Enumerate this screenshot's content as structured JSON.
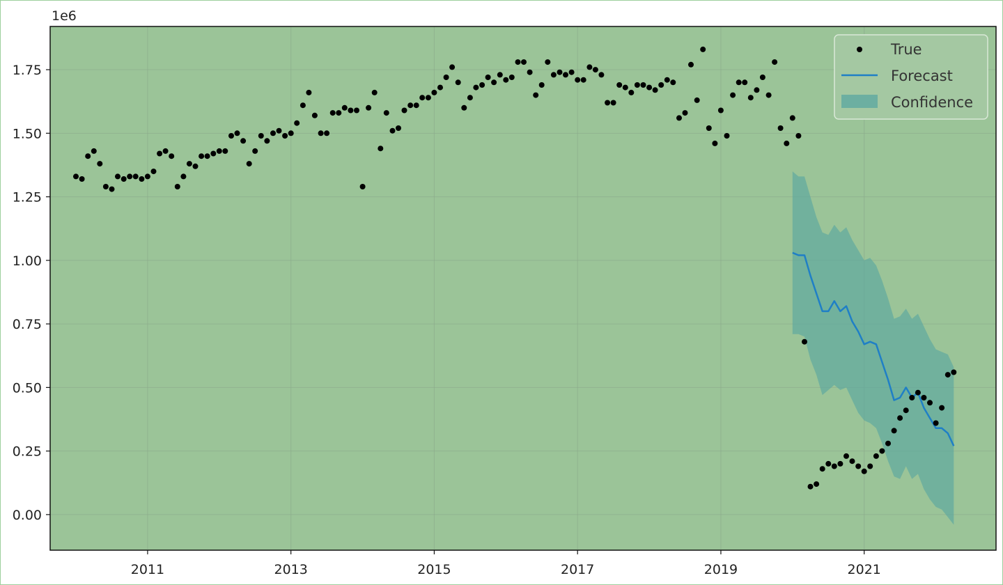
{
  "colors": {
    "plot_bg": "#9bc498",
    "grid": "#8aa98a",
    "true_points": "#000000",
    "forecast_line": "#1f7fc6",
    "confidence_fill": "#5aa7a0",
    "legend_bg": "#a4c8a2",
    "legend_border": "#d9e8d7"
  },
  "chart_data": {
    "type": "line",
    "title": "",
    "xlabel": "",
    "ylabel": "",
    "y_offset_label": "1e6",
    "xlim": [
      2009.64,
      2022.84
    ],
    "ylim": [
      -0.14,
      1.92
    ],
    "grid": true,
    "legend_position": "top-right",
    "x_ticks": [
      2011,
      2013,
      2015,
      2017,
      2019,
      2021
    ],
    "x_tick_labels": [
      "2011",
      "2013",
      "2015",
      "2017",
      "2019",
      "2021"
    ],
    "y_ticks": [
      0.0,
      0.25,
      0.5,
      0.75,
      1.0,
      1.25,
      1.5,
      1.75
    ],
    "y_tick_labels": [
      "0.00",
      "0.25",
      "0.50",
      "0.75",
      "1.00",
      "1.25",
      "1.50",
      "1.75"
    ],
    "legend": [
      "True",
      "Forecast",
      "Confidence"
    ],
    "series": [
      {
        "name": "True",
        "kind": "scatter",
        "points": [
          [
            2010.0,
            1.33
          ],
          [
            2010.083,
            1.32
          ],
          [
            2010.167,
            1.41
          ],
          [
            2010.25,
            1.43
          ],
          [
            2010.333,
            1.38
          ],
          [
            2010.417,
            1.29
          ],
          [
            2010.5,
            1.28
          ],
          [
            2010.583,
            1.33
          ],
          [
            2010.667,
            1.32
          ],
          [
            2010.75,
            1.33
          ],
          [
            2010.833,
            1.33
          ],
          [
            2010.917,
            1.32
          ],
          [
            2011.0,
            1.33
          ],
          [
            2011.083,
            1.35
          ],
          [
            2011.167,
            1.42
          ],
          [
            2011.25,
            1.43
          ],
          [
            2011.333,
            1.41
          ],
          [
            2011.417,
            1.29
          ],
          [
            2011.5,
            1.33
          ],
          [
            2011.583,
            1.38
          ],
          [
            2011.667,
            1.37
          ],
          [
            2011.75,
            1.41
          ],
          [
            2011.833,
            1.41
          ],
          [
            2011.917,
            1.42
          ],
          [
            2012.0,
            1.43
          ],
          [
            2012.083,
            1.43
          ],
          [
            2012.167,
            1.49
          ],
          [
            2012.25,
            1.5
          ],
          [
            2012.333,
            1.47
          ],
          [
            2012.417,
            1.38
          ],
          [
            2012.5,
            1.43
          ],
          [
            2012.583,
            1.49
          ],
          [
            2012.667,
            1.47
          ],
          [
            2012.75,
            1.5
          ],
          [
            2012.833,
            1.51
          ],
          [
            2012.917,
            1.49
          ],
          [
            2013.0,
            1.5
          ],
          [
            2013.083,
            1.54
          ],
          [
            2013.167,
            1.61
          ],
          [
            2013.25,
            1.66
          ],
          [
            2013.333,
            1.57
          ],
          [
            2013.417,
            1.5
          ],
          [
            2013.5,
            1.5
          ],
          [
            2013.583,
            1.58
          ],
          [
            2013.667,
            1.58
          ],
          [
            2013.75,
            1.6
          ],
          [
            2013.833,
            1.59
          ],
          [
            2013.917,
            1.59
          ],
          [
            2014.0,
            1.29
          ],
          [
            2014.083,
            1.6
          ],
          [
            2014.167,
            1.66
          ],
          [
            2014.25,
            1.44
          ],
          [
            2014.333,
            1.58
          ],
          [
            2014.417,
            1.51
          ],
          [
            2014.5,
            1.52
          ],
          [
            2014.583,
            1.59
          ],
          [
            2014.667,
            1.61
          ],
          [
            2014.75,
            1.61
          ],
          [
            2014.833,
            1.64
          ],
          [
            2014.917,
            1.64
          ],
          [
            2015.0,
            1.66
          ],
          [
            2015.083,
            1.68
          ],
          [
            2015.167,
            1.72
          ],
          [
            2015.25,
            1.76
          ],
          [
            2015.333,
            1.7
          ],
          [
            2015.417,
            1.6
          ],
          [
            2015.5,
            1.64
          ],
          [
            2015.583,
            1.68
          ],
          [
            2015.667,
            1.69
          ],
          [
            2015.75,
            1.72
          ],
          [
            2015.833,
            1.7
          ],
          [
            2015.917,
            1.73
          ],
          [
            2016.0,
            1.71
          ],
          [
            2016.083,
            1.72
          ],
          [
            2016.167,
            1.78
          ],
          [
            2016.25,
            1.78
          ],
          [
            2016.333,
            1.74
          ],
          [
            2016.417,
            1.65
          ],
          [
            2016.5,
            1.69
          ],
          [
            2016.583,
            1.78
          ],
          [
            2016.667,
            1.73
          ],
          [
            2016.75,
            1.74
          ],
          [
            2016.833,
            1.73
          ],
          [
            2016.917,
            1.74
          ],
          [
            2017.0,
            1.71
          ],
          [
            2017.083,
            1.71
          ],
          [
            2017.167,
            1.76
          ],
          [
            2017.25,
            1.75
          ],
          [
            2017.333,
            1.73
          ],
          [
            2017.417,
            1.62
          ],
          [
            2017.5,
            1.62
          ],
          [
            2017.583,
            1.69
          ],
          [
            2017.667,
            1.68
          ],
          [
            2017.75,
            1.66
          ],
          [
            2017.833,
            1.69
          ],
          [
            2017.917,
            1.69
          ],
          [
            2018.0,
            1.68
          ],
          [
            2018.083,
            1.67
          ],
          [
            2018.167,
            1.69
          ],
          [
            2018.25,
            1.71
          ],
          [
            2018.333,
            1.7
          ],
          [
            2018.417,
            1.56
          ],
          [
            2018.5,
            1.58
          ],
          [
            2018.583,
            1.77
          ],
          [
            2018.667,
            1.63
          ],
          [
            2018.75,
            1.83
          ],
          [
            2018.833,
            1.52
          ],
          [
            2018.917,
            1.46
          ],
          [
            2019.0,
            1.59
          ],
          [
            2019.083,
            1.49
          ],
          [
            2019.167,
            1.65
          ],
          [
            2019.25,
            1.7
          ],
          [
            2019.333,
            1.7
          ],
          [
            2019.417,
            1.64
          ],
          [
            2019.5,
            1.67
          ],
          [
            2019.583,
            1.72
          ],
          [
            2019.667,
            1.65
          ],
          [
            2019.75,
            1.78
          ],
          [
            2019.833,
            1.52
          ],
          [
            2019.917,
            1.46
          ],
          [
            2020.0,
            1.56
          ],
          [
            2020.083,
            1.49
          ],
          [
            2020.167,
            0.68
          ],
          [
            2020.25,
            0.11
          ],
          [
            2020.333,
            0.12
          ],
          [
            2020.417,
            0.18
          ],
          [
            2020.5,
            0.2
          ],
          [
            2020.583,
            0.19
          ],
          [
            2020.667,
            0.2
          ],
          [
            2020.75,
            0.23
          ],
          [
            2020.833,
            0.21
          ],
          [
            2020.917,
            0.19
          ],
          [
            2021.0,
            0.17
          ],
          [
            2021.083,
            0.19
          ],
          [
            2021.167,
            0.23
          ],
          [
            2021.25,
            0.25
          ],
          [
            2021.333,
            0.28
          ],
          [
            2021.417,
            0.33
          ],
          [
            2021.5,
            0.38
          ],
          [
            2021.583,
            0.41
          ],
          [
            2021.667,
            0.46
          ],
          [
            2021.75,
            0.48
          ],
          [
            2021.833,
            0.46
          ],
          [
            2021.917,
            0.44
          ],
          [
            2022.0,
            0.36
          ],
          [
            2022.083,
            0.42
          ],
          [
            2022.167,
            0.55
          ],
          [
            2022.25,
            0.56
          ]
        ]
      },
      {
        "name": "Forecast",
        "kind": "line",
        "points": [
          [
            2020.0,
            1.03
          ],
          [
            2020.083,
            1.02
          ],
          [
            2020.167,
            1.02
          ],
          [
            2020.25,
            0.94
          ],
          [
            2020.333,
            0.87
          ],
          [
            2020.417,
            0.8
          ],
          [
            2020.5,
            0.8
          ],
          [
            2020.583,
            0.84
          ],
          [
            2020.667,
            0.8
          ],
          [
            2020.75,
            0.82
          ],
          [
            2020.833,
            0.76
          ],
          [
            2020.917,
            0.72
          ],
          [
            2021.0,
            0.67
          ],
          [
            2021.083,
            0.68
          ],
          [
            2021.167,
            0.67
          ],
          [
            2021.25,
            0.6
          ],
          [
            2021.333,
            0.53
          ],
          [
            2021.417,
            0.45
          ],
          [
            2021.5,
            0.46
          ],
          [
            2021.583,
            0.5
          ],
          [
            2021.667,
            0.46
          ],
          [
            2021.75,
            0.48
          ],
          [
            2021.833,
            0.42
          ],
          [
            2021.917,
            0.38
          ],
          [
            2022.0,
            0.34
          ],
          [
            2022.083,
            0.34
          ],
          [
            2022.167,
            0.32
          ],
          [
            2022.25,
            0.27
          ]
        ]
      },
      {
        "name": "Confidence",
        "kind": "band",
        "upper": [
          [
            2020.0,
            1.35
          ],
          [
            2020.083,
            1.33
          ],
          [
            2020.167,
            1.33
          ],
          [
            2020.25,
            1.25
          ],
          [
            2020.333,
            1.17
          ],
          [
            2020.417,
            1.11
          ],
          [
            2020.5,
            1.1
          ],
          [
            2020.583,
            1.14
          ],
          [
            2020.667,
            1.11
          ],
          [
            2020.75,
            1.13
          ],
          [
            2020.833,
            1.08
          ],
          [
            2020.917,
            1.04
          ],
          [
            2021.0,
            1.0
          ],
          [
            2021.083,
            1.01
          ],
          [
            2021.167,
            0.98
          ],
          [
            2021.25,
            0.92
          ],
          [
            2021.333,
            0.85
          ],
          [
            2021.417,
            0.77
          ],
          [
            2021.5,
            0.78
          ],
          [
            2021.583,
            0.81
          ],
          [
            2021.667,
            0.77
          ],
          [
            2021.75,
            0.79
          ],
          [
            2021.833,
            0.74
          ],
          [
            2021.917,
            0.69
          ],
          [
            2022.0,
            0.65
          ],
          [
            2022.083,
            0.64
          ],
          [
            2022.167,
            0.63
          ],
          [
            2022.25,
            0.58
          ]
        ],
        "lower": [
          [
            2020.0,
            0.71
          ],
          [
            2020.083,
            0.71
          ],
          [
            2020.167,
            0.7
          ],
          [
            2020.25,
            0.61
          ],
          [
            2020.333,
            0.55
          ],
          [
            2020.417,
            0.47
          ],
          [
            2020.5,
            0.49
          ],
          [
            2020.583,
            0.51
          ],
          [
            2020.667,
            0.49
          ],
          [
            2020.75,
            0.5
          ],
          [
            2020.833,
            0.45
          ],
          [
            2020.917,
            0.4
          ],
          [
            2021.0,
            0.37
          ],
          [
            2021.083,
            0.36
          ],
          [
            2021.167,
            0.34
          ],
          [
            2021.25,
            0.28
          ],
          [
            2021.333,
            0.21
          ],
          [
            2021.417,
            0.15
          ],
          [
            2021.5,
            0.14
          ],
          [
            2021.583,
            0.19
          ],
          [
            2021.667,
            0.14
          ],
          [
            2021.75,
            0.16
          ],
          [
            2021.833,
            0.1
          ],
          [
            2021.917,
            0.06
          ],
          [
            2022.0,
            0.03
          ],
          [
            2022.083,
            0.02
          ],
          [
            2022.167,
            -0.01
          ],
          [
            2022.25,
            -0.04
          ]
        ]
      }
    ]
  }
}
